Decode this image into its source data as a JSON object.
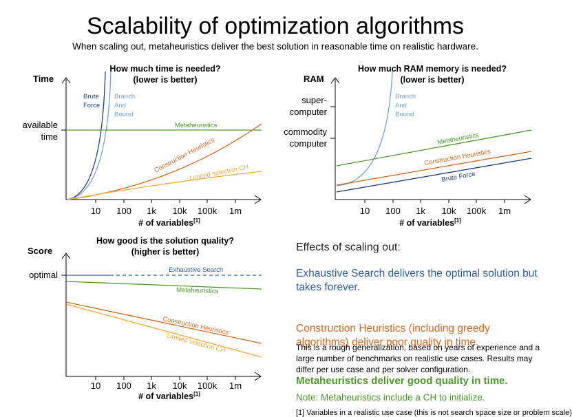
{
  "header": {
    "title": "Scalability of optimization algorithms",
    "subtitle": "When scaling out, metaheuristics deliver the best solution in reasonable time on realistic hardware."
  },
  "colors": {
    "brute_force": "#1f3f7a",
    "branch_bound": "#6fa2d4",
    "metaheuristics": "#4a9a28",
    "construction": "#d2691e",
    "limited": "#f2a93b",
    "exhaustive": "#2e5e9a"
  },
  "x_axis": {
    "label": "# of variables",
    "footnote": "[1]",
    "ticks": [
      "10",
      "100",
      "1k",
      "10k",
      "100k",
      "1m"
    ]
  },
  "chart_data": [
    {
      "type": "line",
      "name": "time",
      "title_line1": "How much time is needed?",
      "title_line2": "(lower is better)",
      "ylabel": "Time",
      "y_ticks": [
        {
          "label_line1": "available",
          "label_line2": "time"
        }
      ],
      "series": [
        {
          "name": "Brute Force",
          "label_line1": "Brute",
          "label_line2": "Force"
        },
        {
          "name": "Branch And Bound",
          "label_line1": "Branch",
          "label_line2": "And",
          "label_line3": "Bound"
        },
        {
          "name": "Metaheuristics",
          "label": "Metaheuristics"
        },
        {
          "name": "Construction Heuristics",
          "label": "Construction Heuristics"
        },
        {
          "name": "Limited selection CH",
          "label": "Limited selection CH"
        }
      ]
    },
    {
      "type": "line",
      "name": "ram",
      "title_line1": "How much RAM memory is needed?",
      "title_line2": "(lower is better)",
      "ylabel": "RAM",
      "y_ticks": [
        {
          "label_line1": "super-",
          "label_line2": "computer"
        },
        {
          "label_line1": "commodity",
          "label_line2": "computer"
        }
      ],
      "series": [
        {
          "name": "Branch And Bound",
          "label_line1": "Branch",
          "label_line2": "And",
          "label_line3": "Bound"
        },
        {
          "name": "Metaheuristics",
          "label": "Metaheuristics"
        },
        {
          "name": "Construction Heuristics",
          "label": "Construction Heuristics"
        },
        {
          "name": "Brute Force",
          "label": "Brute Force"
        }
      ]
    },
    {
      "type": "line",
      "name": "score",
      "title_line1": "How good is the solution quality?",
      "title_line2": "(higher is better)",
      "ylabel": "Score",
      "y_ticks": [
        {
          "label": "optimal"
        }
      ],
      "series": [
        {
          "name": "Exhaustive Search",
          "label": "Exhaustive Search"
        },
        {
          "name": "Metaheuristics",
          "label": "Metaheuristics"
        },
        {
          "name": "Construction Heuristics",
          "label": "Construction Heuristics"
        },
        {
          "name": "Limited selection CH",
          "label": "Limited selection CH"
        }
      ]
    }
  ],
  "effects": {
    "heading": "Effects of scaling out:",
    "exhaustive": "Exhaustive Search delivers the optimal solution but takes forever.",
    "construction": "Construction Heuristics (including greedy algorithms) deliver poor quality in time.",
    "disclaimer": "This is a rough generalization, based on years of experience and a large number of benchmarks on realistic use cases. Results may differ per use case and per solver configuration.",
    "metaheuristics": "Metaheuristics deliver good quality in time.",
    "note": "Note: Metaheuristics include a CH to initialize.",
    "footnote": "[1] Variables in a realistic use case (this is not search space size or problem scale)"
  }
}
